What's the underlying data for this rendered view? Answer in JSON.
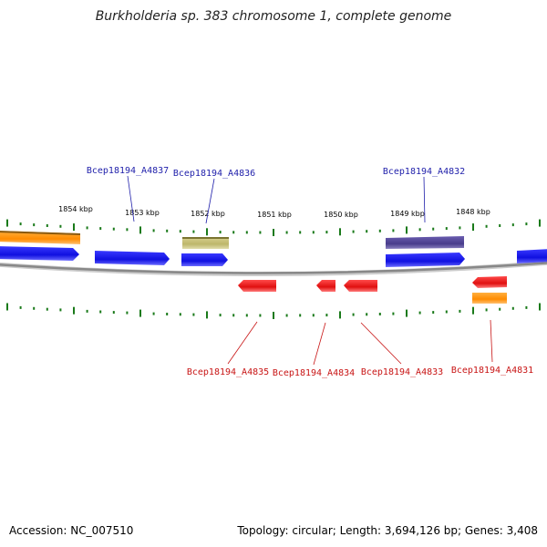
{
  "title": "Burkholderia sp. 383 chromosome 1, complete genome",
  "footer": {
    "accession": "Accession: NC_007510",
    "summary": "Topology: circular; Length: 3,694,126 bp; Genes: 3,408"
  },
  "colors": {
    "forward_gene": "#1414e6",
    "reverse_gene": "#e61414",
    "orange_feature": "#ff8c00",
    "olive_feature": "#bdb76b",
    "navy_feature": "#483d8b",
    "tick": "#1a7a1a",
    "backbone": "#888888",
    "forward_label": "#1e1eaa",
    "reverse_label": "#c81414"
  },
  "kbp_ticks": [
    {
      "label": "1854 kbp"
    },
    {
      "label": "1853 kbp"
    },
    {
      "label": "1852 kbp"
    },
    {
      "label": "1851 kbp"
    },
    {
      "label": "1850 kbp"
    },
    {
      "label": "1849 kbp"
    },
    {
      "label": "1848 kbp"
    }
  ],
  "forward_labels": [
    {
      "text": "Bcep18194_A4837"
    },
    {
      "text": "Bcep18194_A4836"
    },
    {
      "text": "Bcep18194_A4832"
    }
  ],
  "reverse_labels": [
    {
      "text": "Bcep18194_A4835"
    },
    {
      "text": "Bcep18194_A4834"
    },
    {
      "text": "Bcep18194_A4833"
    },
    {
      "text": "Bcep18194_A4831"
    }
  ]
}
